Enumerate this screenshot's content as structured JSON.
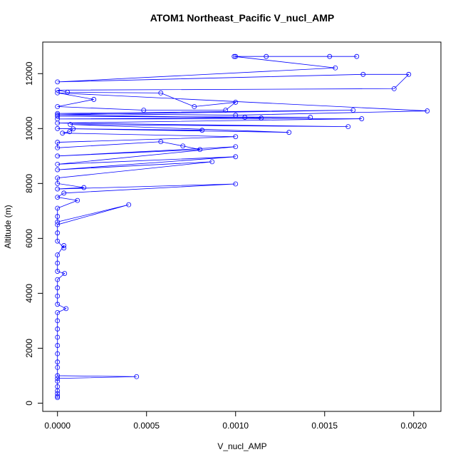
{
  "chart_data": {
    "type": "line",
    "title": "ATOM1 Northeast_Pacific V_nucl_AMP",
    "x_label": "V_nucl_AMP",
    "y_label": "Altitude (m)",
    "x": [
      0,
      0,
      0,
      0,
      0,
      0,
      0,
      0.000444,
      0,
      0,
      0,
      0,
      0,
      0,
      0,
      0,
      0,
      4.8e-05,
      0,
      0,
      0,
      0,
      4e-05,
      0,
      0,
      0,
      3.6e-05,
      3.6e-05,
      0,
      0,
      0,
      0.0004,
      0,
      0,
      0,
      0.000112,
      0,
      3.6e-05,
      0.001,
      0,
      0.000148,
      0,
      0,
      0.000868,
      0,
      0.001,
      0,
      0.001,
      0,
      0.0008,
      0.000704,
      0.00058,
      0,
      0,
      0.001,
      2.8e-05,
      6.8e-05,
      8.8e-05,
      0.000812,
      0,
      0.0013,
      7.2e-05,
      0.001632,
      0,
      0.001708,
      0,
      0.00142,
      0,
      0.001052,
      0.001144,
      0,
      0.00166,
      0,
      0.001,
      0.002076,
      0,
      0.000204,
      0,
      0.000484,
      0.000944,
      0.001,
      0.000768,
      0.00058,
      5.6e-05,
      0,
      0.00189,
      0.001972,
      0.001716,
      0,
      0.00156,
      0.000992,
      0.001,
      0.001172,
      0.001528,
      0.00168
    ],
    "series": [
      {
        "color": "#0000ff",
        "values": [
          200,
          250,
          350,
          450,
          600,
          800,
          900,
          965,
          1000,
          1300,
          1500,
          1800,
          2100,
          2400,
          2700,
          3000,
          3300,
          3443,
          3600,
          3900,
          4200,
          4500,
          4722,
          4800,
          5100,
          5400,
          5739,
          5650,
          5900,
          6200,
          6500,
          7226,
          6600,
          6800,
          7100,
          7383,
          7500,
          7650,
          7983,
          7800,
          7852,
          8000,
          8200,
          8791,
          8500,
          8974,
          8700,
          9339,
          9000,
          9235,
          9365,
          9522,
          9300,
          9500,
          9704,
          9835,
          9887,
          9991,
          9939,
          10000,
          9861,
          10148,
          10070,
          10200,
          10357,
          10350,
          10409,
          10450,
          10409,
          10383,
          10500,
          10670,
          10550,
          10487,
          10643,
          11300,
          11061,
          10800,
          10670,
          10670,
          10957,
          10800,
          11296,
          11322,
          11400,
          11452,
          11974,
          11974,
          11700,
          12209,
          12626,
          12626,
          12626,
          12626,
          12626
        ]
      }
    ],
    "xlim": [
      -8.28e-05,
      0.0021528
    ],
    "xticks": [
      {
        "value": 0,
        "label": "0.0000"
      },
      {
        "value": 0.0005,
        "label": "0.0005"
      },
      {
        "value": 0.001,
        "label": "0.0010"
      },
      {
        "value": 0.0015,
        "label": "0.0015"
      },
      {
        "value": 0.002,
        "label": "0.0020"
      }
    ],
    "ylim": [
      -300,
      13150
    ],
    "yticks": [
      0,
      2000,
      4000,
      6000,
      8000,
      10000,
      12000
    ]
  }
}
